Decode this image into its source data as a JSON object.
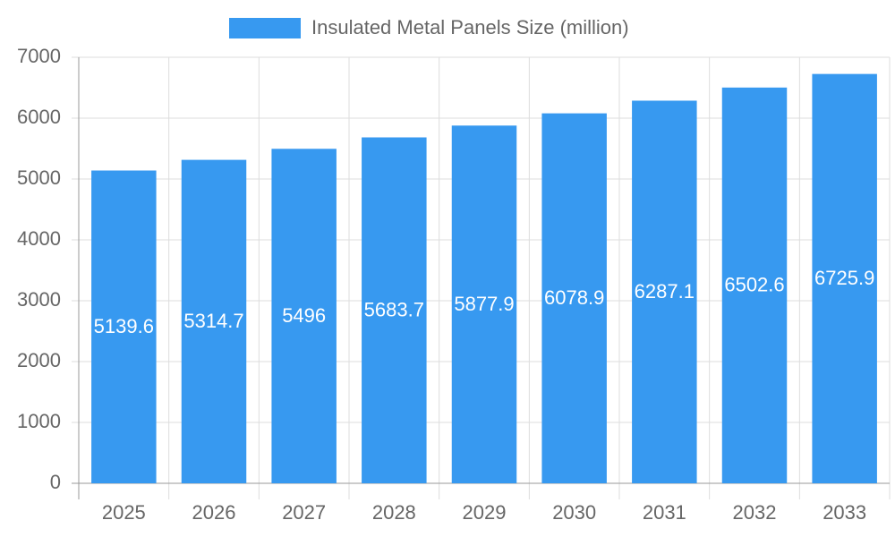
{
  "chart_data": {
    "type": "bar",
    "categories": [
      "2025",
      "2026",
      "2027",
      "2028",
      "2029",
      "2030",
      "2031",
      "2032",
      "2033"
    ],
    "series": [
      {
        "name": "Insulated Metal Panels Size (million)",
        "color": "#3799f0",
        "values": [
          5139.6,
          5314.7,
          5496,
          5683.7,
          5877.9,
          6078.9,
          6287.1,
          6502.6,
          6725.9
        ]
      }
    ],
    "ylim": [
      0,
      7000
    ],
    "yticks": [
      0,
      1000,
      2000,
      3000,
      4000,
      5000,
      6000,
      7000
    ],
    "grid": true,
    "legend": "top"
  }
}
